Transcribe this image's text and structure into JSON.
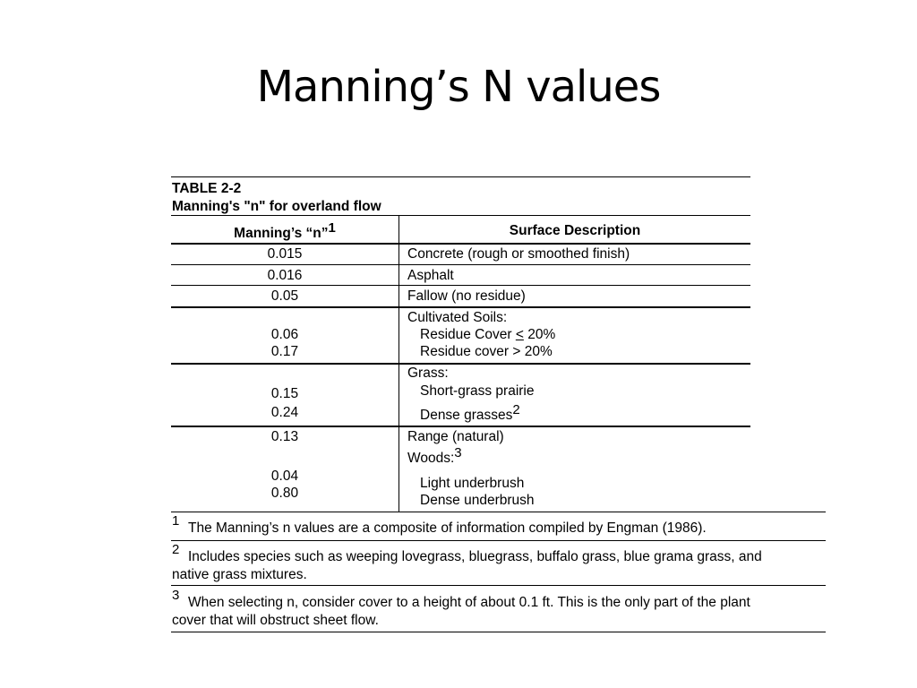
{
  "slide": {
    "title": "Manning’s N values"
  },
  "table": {
    "caption_number": "TABLE 2-2",
    "caption_title": "Manning's \"n\" for overland flow",
    "header_n": "Manning’s “n”",
    "header_n_sup": "1",
    "header_desc": "Surface Description",
    "rows": {
      "concrete": {
        "n": "0.015",
        "desc": "Concrete (rough or smoothed finish)"
      },
      "asphalt": {
        "n": "0.016",
        "desc": "Asphalt"
      },
      "fallow": {
        "n": "0.05",
        "desc": "Fallow (no residue)"
      },
      "cultivated": {
        "heading": "Cultivated Soils:",
        "n1": "0.06",
        "sub1_prefix": "Residue Cover ",
        "sub1_sym": "<",
        "sub1_suffix": " 20%",
        "n2": "0.17",
        "sub2": "Residue cover > 20%"
      },
      "grass": {
        "heading": "Grass:",
        "n1": "0.15",
        "sub1": "Short-grass prairie",
        "n2": "0.24",
        "sub2": "Dense grasses",
        "sub2_sup": "2"
      },
      "range_woods": {
        "n_range": "0.13",
        "range": "Range (natural)",
        "woods": "Woods:",
        "woods_sup": "3",
        "n1": "0.04",
        "sub1": "Light underbrush",
        "n2": "0.80",
        "sub2": "Dense underbrush"
      }
    },
    "footnotes": {
      "f1": {
        "num": "1",
        "text": "The Manning’s n values are a composite of information compiled by Engman (1986)."
      },
      "f2": {
        "num": "2",
        "line1": "Includes species such as weeping lovegrass, bluegrass, buffalo grass, blue grama grass, and",
        "line2": "native grass mixtures."
      },
      "f3": {
        "num": "3",
        "line1": "When selecting n, consider cover to a height of about 0.1 ft. This is the only part of the plant",
        "line2": "cover that will obstruct sheet flow."
      }
    }
  }
}
